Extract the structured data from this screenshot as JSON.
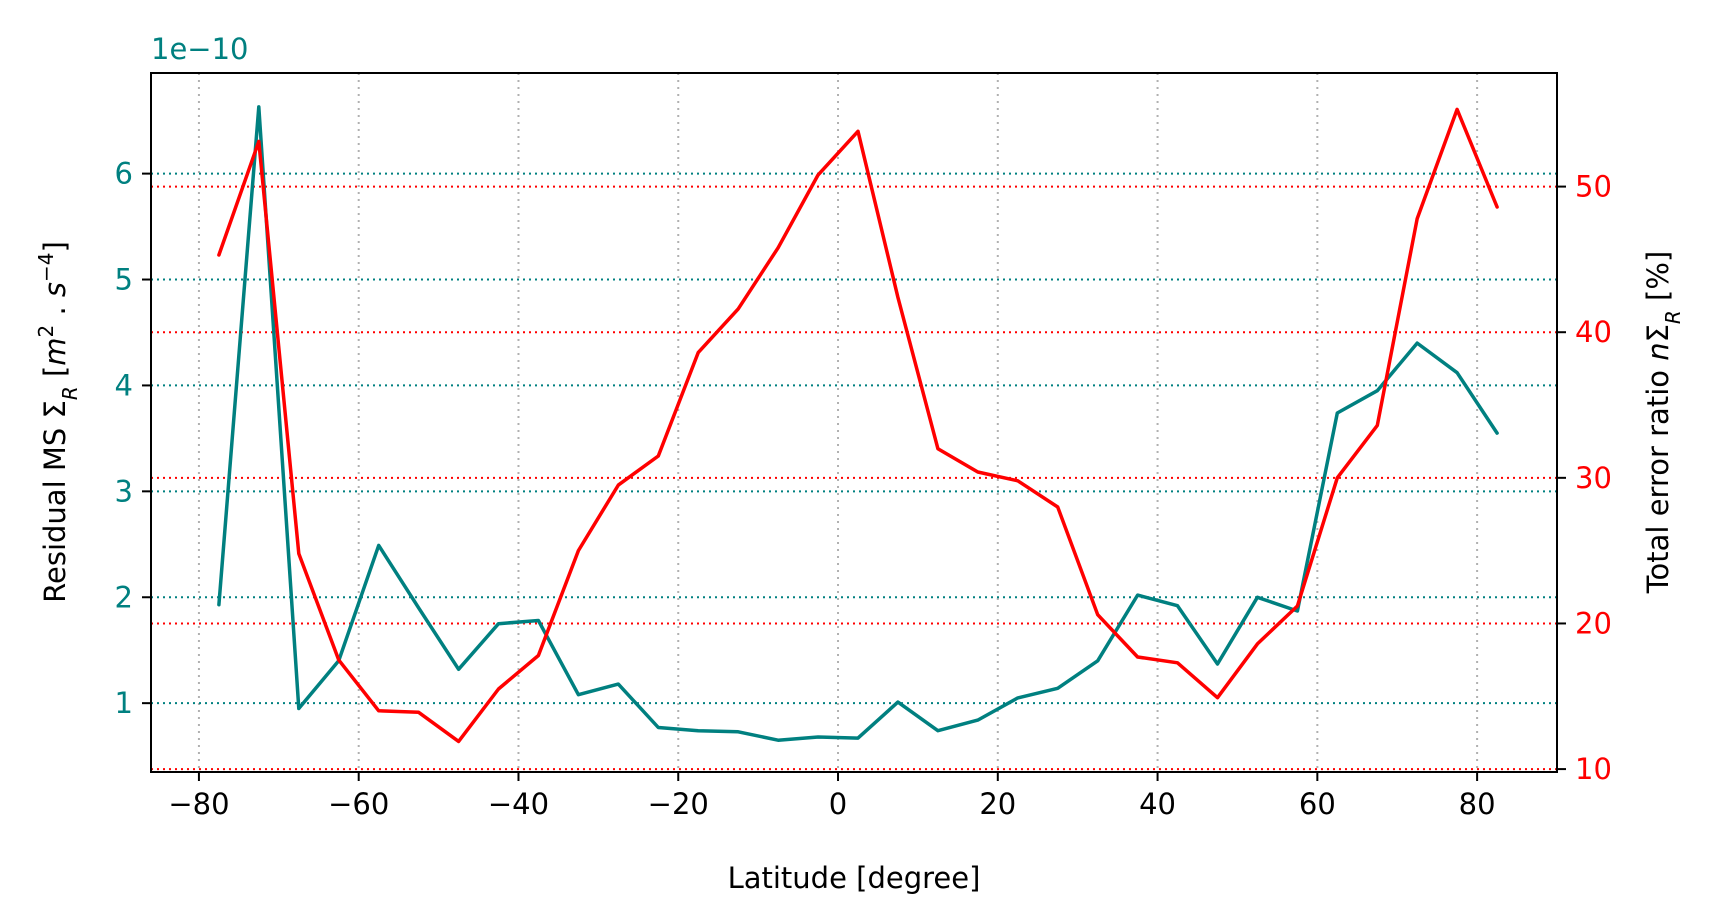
{
  "chart_data": {
    "type": "line",
    "xlabel": "Latitude [degree]",
    "ylabel_left": "Residual MS Σ_R [m^2 . s^-4]",
    "ylabel_right": "Total error ratio nΣ_R [%]",
    "left_offset_label": "1e−10",
    "xlim": [
      -86,
      90
    ],
    "ylim_left": [
      0.35,
      6.95
    ],
    "ylim_right": [
      9.8,
      57.8
    ],
    "xticks": [
      -80,
      -60,
      -40,
      -20,
      0,
      20,
      40,
      60,
      80
    ],
    "xtick_labels": [
      "−80",
      "−60",
      "−40",
      "−20",
      "0",
      "20",
      "40",
      "60",
      "80"
    ],
    "yticks_left": [
      1,
      2,
      3,
      4,
      5,
      6
    ],
    "ytick_labels_left": [
      "1",
      "2",
      "3",
      "4",
      "5",
      "6"
    ],
    "yticks_right": [
      10,
      20,
      30,
      40,
      50
    ],
    "ytick_labels_right": [
      "10",
      "20",
      "30",
      "40",
      "50"
    ],
    "grid": true,
    "colors": {
      "left": "#008080",
      "right": "#ff0000",
      "vgrid": "#b0b0b0"
    },
    "x": [
      -77.5,
      -72.5,
      -67.5,
      -62.5,
      -57.5,
      -52.5,
      -47.5,
      -42.5,
      -37.5,
      -32.5,
      -27.5,
      -22.5,
      -17.5,
      -12.5,
      -7.5,
      -2.5,
      2.5,
      7.5,
      12.5,
      17.5,
      22.5,
      27.5,
      32.5,
      37.5,
      42.5,
      47.5,
      52.5,
      57.5,
      62.5,
      67.5,
      72.5,
      77.5,
      82.5
    ],
    "series": [
      {
        "axis": "left",
        "color": "#008080",
        "values": [
          1.93,
          6.63,
          0.95,
          1.4,
          2.49,
          1.9,
          1.32,
          1.75,
          1.78,
          1.08,
          1.18,
          0.77,
          0.74,
          0.73,
          0.65,
          0.68,
          0.67,
          1.01,
          0.74,
          0.84,
          1.05,
          1.14,
          1.4,
          2.02,
          1.92,
          1.37,
          2.0,
          1.87,
          3.74,
          3.95,
          4.4,
          4.12,
          3.55
        ]
      },
      {
        "axis": "right",
        "color": "#ff0000",
        "values": [
          45.3,
          53.1,
          24.8,
          17.5,
          14.0,
          13.9,
          11.9,
          15.5,
          17.8,
          25.0,
          29.5,
          31.5,
          38.6,
          41.6,
          45.8,
          50.8,
          53.8,
          42.4,
          32.0,
          30.4,
          29.8,
          28.0,
          20.6,
          17.7,
          17.3,
          14.9,
          18.6,
          21.2,
          30.0,
          33.6,
          47.8,
          55.3,
          48.6
        ]
      }
    ]
  }
}
